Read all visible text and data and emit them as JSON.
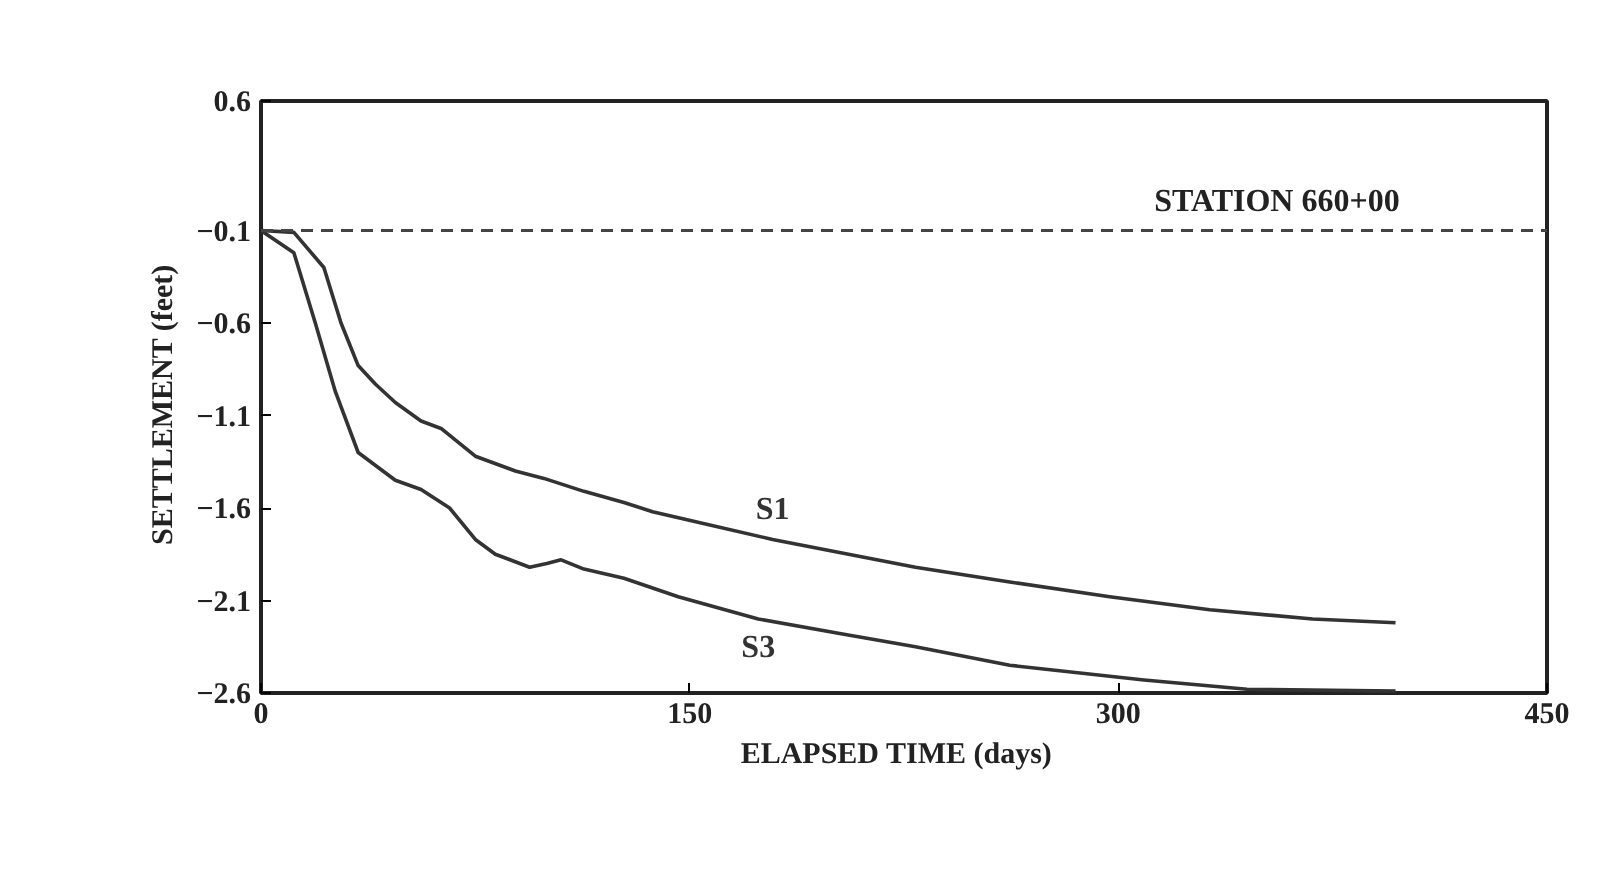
{
  "chart_data": {
    "type": "line",
    "xlabel": "ELAPSED TIME   (days)",
    "ylabel": "SETTLEMENT   (feet)",
    "xlim": [
      0,
      450
    ],
    "xticks": [
      0,
      150,
      300,
      450
    ],
    "ylim": [
      -2.6,
      0.6
    ],
    "yticks": [
      0.6,
      -0.1,
      -0.6,
      -1.1,
      -1.6,
      -2.1,
      -2.6
    ],
    "grid": false,
    "marker": "none",
    "line_style": "solid",
    "series": [
      {
        "name": "S1",
        "color": "#333333",
        "x": [
          0,
          11.5,
          22,
          28,
          34,
          40,
          47,
          56,
          63,
          75,
          89,
          99,
          113,
          127,
          137,
          151,
          179,
          229,
          262,
          297,
          332,
          368,
          397
        ],
        "values": [
          -0.1,
          -0.11,
          -0.3,
          -0.6,
          -0.83,
          -0.93,
          -1.03,
          -1.13,
          -1.17,
          -1.32,
          -1.4,
          -1.44,
          -1.51,
          -1.57,
          -1.62,
          -1.67,
          -1.77,
          -1.92,
          -2.0,
          -2.08,
          -2.15,
          -2.2,
          -2.22
        ]
      },
      {
        "name": "S3",
        "color": "#333333",
        "x": [
          0,
          11.5,
          19,
          26,
          34,
          47,
          56,
          66,
          75,
          82,
          94,
          100,
          105,
          113,
          127,
          146,
          174,
          203,
          229,
          262,
          309,
          345,
          397
        ],
        "values": [
          -0.1,
          -0.22,
          -0.6,
          -0.97,
          -1.3,
          -1.45,
          -1.5,
          -1.6,
          -1.77,
          -1.85,
          -1.92,
          -1.9,
          -1.88,
          -1.93,
          -1.98,
          -2.08,
          -2.2,
          -2.28,
          -2.35,
          -2.45,
          -2.53,
          -2.58,
          -2.59
        ]
      }
    ],
    "ref_lines": [
      {
        "axis": "y",
        "value": -0.1,
        "line_style": "dashed",
        "color": "#444444"
      }
    ],
    "annotations": [
      "STATION 660+00"
    ]
  }
}
